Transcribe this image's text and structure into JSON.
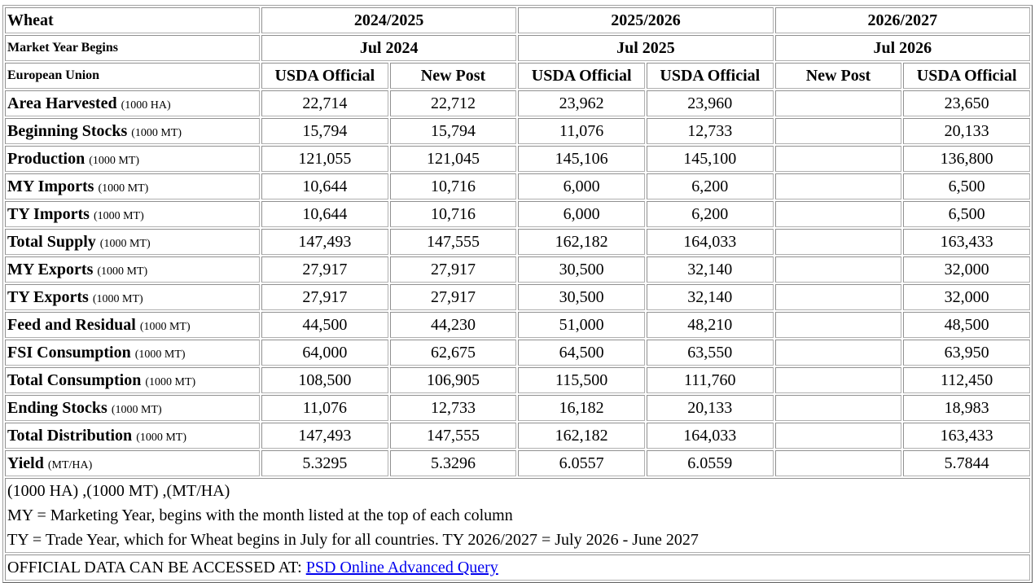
{
  "header": {
    "commodity": "Wheat",
    "market_year_label": "Market Year Begins",
    "country": "European Union",
    "years": [
      {
        "label": "2024/2025",
        "begins": "Jul 2024",
        "cols": [
          "USDA Official",
          "New Post"
        ]
      },
      {
        "label": "2025/2026",
        "begins": "Jul 2025",
        "cols": [
          "USDA Official",
          "USDA Official"
        ]
      },
      {
        "label": "2026/2027",
        "begins": "Jul 2026",
        "cols": [
          "New Post",
          "USDA Official"
        ]
      }
    ]
  },
  "rows": [
    {
      "label": "Area Harvested",
      "unit": "(1000 HA)",
      "values": [
        "22,714",
        "22,712",
        "23,962",
        "23,960",
        "",
        "23,650"
      ]
    },
    {
      "label": "Beginning Stocks",
      "unit": "(1000 MT)",
      "values": [
        "15,794",
        "15,794",
        "11,076",
        "12,733",
        "",
        "20,133"
      ]
    },
    {
      "label": "Production",
      "unit": "(1000 MT)",
      "values": [
        "121,055",
        "121,045",
        "145,106",
        "145,100",
        "",
        "136,800"
      ]
    },
    {
      "label": "MY Imports",
      "unit": "(1000 MT)",
      "values": [
        "10,644",
        "10,716",
        "6,000",
        "6,200",
        "",
        "6,500"
      ]
    },
    {
      "label": "TY Imports",
      "unit": "(1000 MT)",
      "values": [
        "10,644",
        "10,716",
        "6,000",
        "6,200",
        "",
        "6,500"
      ]
    },
    {
      "label": "Total Supply",
      "unit": "(1000 MT)",
      "values": [
        "147,493",
        "147,555",
        "162,182",
        "164,033",
        "",
        "163,433"
      ]
    },
    {
      "label": "MY Exports",
      "unit": "(1000 MT)",
      "values": [
        "27,917",
        "27,917",
        "30,500",
        "32,140",
        "",
        "32,000"
      ]
    },
    {
      "label": "TY Exports",
      "unit": "(1000 MT)",
      "values": [
        "27,917",
        "27,917",
        "30,500",
        "32,140",
        "",
        "32,000"
      ]
    },
    {
      "label": "Feed and Residual",
      "unit": "(1000 MT)",
      "values": [
        "44,500",
        "44,230",
        "51,000",
        "48,210",
        "",
        "48,500"
      ]
    },
    {
      "label": "FSI Consumption",
      "unit": "(1000 MT)",
      "values": [
        "64,000",
        "62,675",
        "64,500",
        "63,550",
        "",
        "63,950"
      ]
    },
    {
      "label": "Total Consumption",
      "unit": "(1000 MT)",
      "values": [
        "108,500",
        "106,905",
        "115,500",
        "111,760",
        "",
        "112,450"
      ]
    },
    {
      "label": "Ending Stocks",
      "unit": "(1000 MT)",
      "values": [
        "11,076",
        "12,733",
        "16,182",
        "20,133",
        "",
        "18,983"
      ]
    },
    {
      "label": "Total Distribution",
      "unit": "(1000 MT)",
      "values": [
        "147,493",
        "147,555",
        "162,182",
        "164,033",
        "",
        "163,433"
      ]
    },
    {
      "label": "Yield",
      "unit": "(MT/HA)",
      "values": [
        "5.3295",
        "5.3296",
        "6.0557",
        "6.0559",
        "",
        "5.7844"
      ]
    }
  ],
  "notes": [
    "(1000 HA) ,(1000 MT) ,(MT/HA)",
    "MY = Marketing Year, begins with the month listed at the top of each column",
    "TY = Trade Year, which for Wheat begins in July for all countries. TY 2026/2027 = July 2026 - June 2027"
  ],
  "access": {
    "text": "OFFICIAL DATA CAN BE ACCESSED AT: ",
    "link": "PSD Online Advanced Query"
  }
}
